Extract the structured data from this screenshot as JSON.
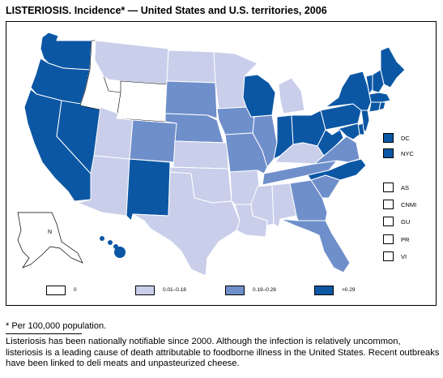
{
  "title": "LISTERIOSIS. Incidence* — United States and U.S. territories, 2006",
  "colors": {
    "zero": "#ffffff",
    "low": "#c9ceea",
    "mid": "#6f8fcb",
    "high": "#0b57a4",
    "border": "#ffffff"
  },
  "legend": [
    {
      "label": "0",
      "color": "#ffffff"
    },
    {
      "label": "0.01–0.18",
      "color": "#c9ceea"
    },
    {
      "label": "0.19–0.28",
      "color": "#6f8fcb"
    },
    {
      "label": ">0.29",
      "color": "#0b57a4"
    }
  ],
  "territories": [
    {
      "label": "DC",
      "color": "#0b57a4"
    },
    {
      "label": "NYC",
      "color": "#0b57a4"
    },
    {
      "label": "AS",
      "color": "#ffffff"
    },
    {
      "label": "CNMI",
      "color": "#ffffff"
    },
    {
      "label": "GU",
      "color": "#ffffff"
    },
    {
      "label": "PR",
      "color": "#ffffff"
    },
    {
      "label": "VI",
      "color": "#ffffff"
    }
  ],
  "alaska_label": "N",
  "states": {
    "WA": "high",
    "OR": "high",
    "CA": "high",
    "NV": "high",
    "ID": "zero",
    "MT": "low",
    "WY": "zero",
    "UT": "low",
    "AZ": "low",
    "NM": "high",
    "CO": "mid",
    "ND": "low",
    "SD": "mid",
    "NE": "mid",
    "KS": "low",
    "OK": "low",
    "TX": "low",
    "MN": "low",
    "IA": "mid",
    "MO": "mid",
    "AR": "low",
    "LA": "low",
    "WI": "high",
    "IL": "mid",
    "MI": "low",
    "IN": "high",
    "OH": "high",
    "KY": "low",
    "TN": "mid",
    "MS": "low",
    "AL": "low",
    "GA": "mid",
    "FL": "mid",
    "SC": "mid",
    "NC": "high",
    "VA": "mid",
    "WV": "high",
    "PA": "high",
    "NY": "high",
    "ME": "high",
    "VT": "high",
    "NH": "high",
    "MA": "high",
    "CT": "high",
    "RI": "high",
    "NJ": "high",
    "DE": "high",
    "MD": "high",
    "AK": "zero",
    "HI": "high"
  },
  "footnote": "* Per 100,000 population.",
  "caption": "Listeriosis has been nationally notifiable since 2000. Although the infection is relatively uncommon, listeriosis is a leading cause of death attributable to foodborne illness in the United States. Recent outbreaks have been linked to deli meats and unpasteurized cheese."
}
